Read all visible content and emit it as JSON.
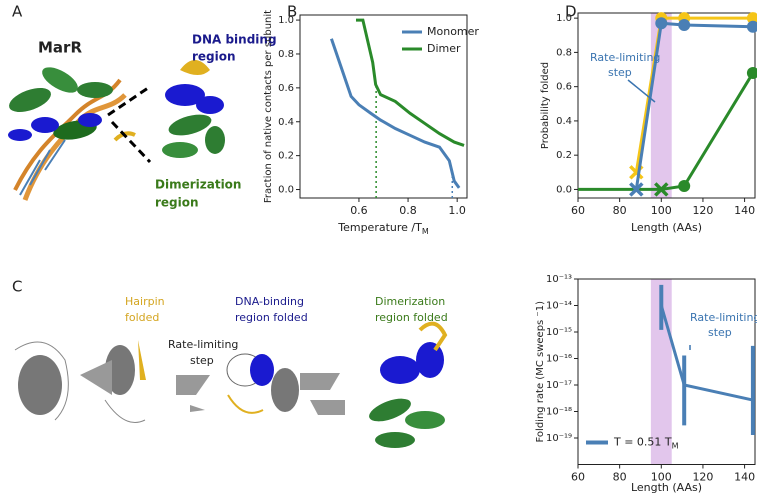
{
  "panels": {
    "a": "A",
    "b": "B",
    "c": "C",
    "d": "D"
  },
  "panel_a": {
    "title": "MarR",
    "dna_label": [
      "DNA binding",
      "region"
    ],
    "dim_label": [
      "Dimerization",
      "region"
    ]
  },
  "panel_c": {
    "hairpin": [
      "Hairpin",
      "folded"
    ],
    "rate": [
      "Rate-limiting",
      "step"
    ],
    "dna": [
      "DNA-binding",
      "region folded"
    ],
    "dim": [
      "Dimerization",
      "region folded"
    ]
  },
  "chart_data": [
    {
      "type": "line",
      "ylabel": "Fraction of native contacts per subunit",
      "xlabel": "Temperature /T",
      "xlabel_sub": "M",
      "xlim": [
        0.36,
        1.04
      ],
      "xticks": [
        0.6,
        0.8,
        {
          "value": 1,
          "label": "1.0"
        }
      ],
      "ylim": [
        -0.05,
        1.03
      ],
      "yticks": [
        {
          "value": 0,
          "label": "0.0"
        },
        0.2,
        0.4,
        0.6,
        0.8,
        {
          "value": 1,
          "label": "1.0"
        }
      ],
      "legend": "upper right",
      "series": [
        {
          "name": "Monomer",
          "color": "#4a7fb5",
          "x": [
            0.488,
            0.528,
            0.568,
            0.6,
            0.648,
            0.688,
            0.748,
            0.808,
            0.868,
            0.928,
            0.968,
            0.988,
            1.008
          ],
          "values": [
            0.89,
            0.72,
            0.55,
            0.5,
            0.45,
            0.41,
            0.36,
            0.32,
            0.28,
            0.25,
            0.17,
            0.05,
            0.01
          ]
        },
        {
          "name": "Dimer",
          "color": "#2a8a2a",
          "x": [
            0.588,
            0.616,
            0.656,
            0.668,
            0.688,
            0.748,
            0.808,
            0.868,
            0.928,
            0.988,
            1.028
          ],
          "values": [
            1.0,
            1.0,
            0.75,
            0.62,
            0.56,
            0.52,
            0.45,
            0.39,
            0.33,
            0.28,
            0.26
          ]
        }
      ],
      "vlines": [
        {
          "x": 0.67,
          "top": 0.62,
          "color": "#2a8a2a"
        },
        {
          "x": 0.98,
          "top": 0.12,
          "color": "#4a7fb5"
        }
      ]
    },
    {
      "type": "line",
      "ylabel": "Probability folded",
      "xlabel": "Length (AAs)",
      "xlim": [
        60,
        145
      ],
      "xticks": [
        60,
        80,
        100,
        120,
        140
      ],
      "ylim": [
        -0.05,
        1.03
      ],
      "yticks": [
        {
          "value": 0,
          "label": "0.0"
        },
        0.2,
        0.4,
        0.6,
        0.8,
        {
          "value": 1,
          "label": "1.0"
        }
      ],
      "shade": [
        95,
        105
      ],
      "shade_color": "#e2c6ec",
      "annotation": [
        "Rate-limiting",
        "step"
      ],
      "annotation_color": "#3a74b0",
      "series": [
        {
          "color": "#2a8a2a",
          "x": [
            60,
            88,
            100,
            111,
            144
          ],
          "values": [
            0,
            0,
            0,
            0.02,
            0.68
          ],
          "markers": [
            "none",
            "none",
            "x",
            "circle",
            "circle"
          ]
        },
        {
          "color": "#f5c518",
          "x": [
            88,
            100,
            111,
            144
          ],
          "values": [
            0.1,
            1.0,
            1.0,
            1.0
          ],
          "markers": [
            "x",
            "circle",
            "circle",
            "circle"
          ]
        },
        {
          "color": "#4a7fb5",
          "x": [
            88,
            100,
            111,
            144
          ],
          "values": [
            0,
            0.97,
            0.96,
            0.95
          ],
          "markers": [
            "x",
            "circle",
            "circle",
            "circle"
          ]
        }
      ]
    },
    {
      "type": "errorbar",
      "ylabel": "Folding rate (MC sweeps ⁻1)",
      "xlabel": "Length (AAs)",
      "log_y": true,
      "xlim": [
        60,
        145
      ],
      "xticks": [
        60,
        80,
        100,
        120,
        140
      ],
      "ylim": [
        1e-20,
        1e-13
      ],
      "yticks": [
        {
          "value": 1e-19,
          "label": "10⁻¹⁹"
        },
        {
          "value": 1e-18,
          "label": "10⁻¹⁸"
        },
        {
          "value": 1e-17,
          "label": "10⁻¹⁷"
        },
        {
          "value": 1e-16,
          "label": "10⁻¹⁶"
        },
        {
          "value": 1e-15,
          "label": "10⁻¹⁵"
        },
        {
          "value": 1e-14,
          "label": "10⁻¹⁴"
        },
        {
          "value": 1e-13,
          "label": "10⁻¹³"
        }
      ],
      "shade": [
        95,
        105
      ],
      "shade_color": "#e2c6ec",
      "annotation": [
        "Rate-limiting",
        "step"
      ],
      "annotation_color": "#3a74b0",
      "legend": "lower left",
      "series": [
        {
          "name": "T = 0.51 T",
          "name_sub": "M",
          "color": "#4a7fb5",
          "x": [
            100,
            111,
            144
          ],
          "values": [
            1e-14,
            1e-17,
            2.7e-18
          ],
          "lower": [
            1.2e-15,
            3e-19,
            1.3e-19
          ],
          "upper": [
            6e-14,
            1.3e-16,
            3e-16
          ]
        }
      ]
    }
  ]
}
